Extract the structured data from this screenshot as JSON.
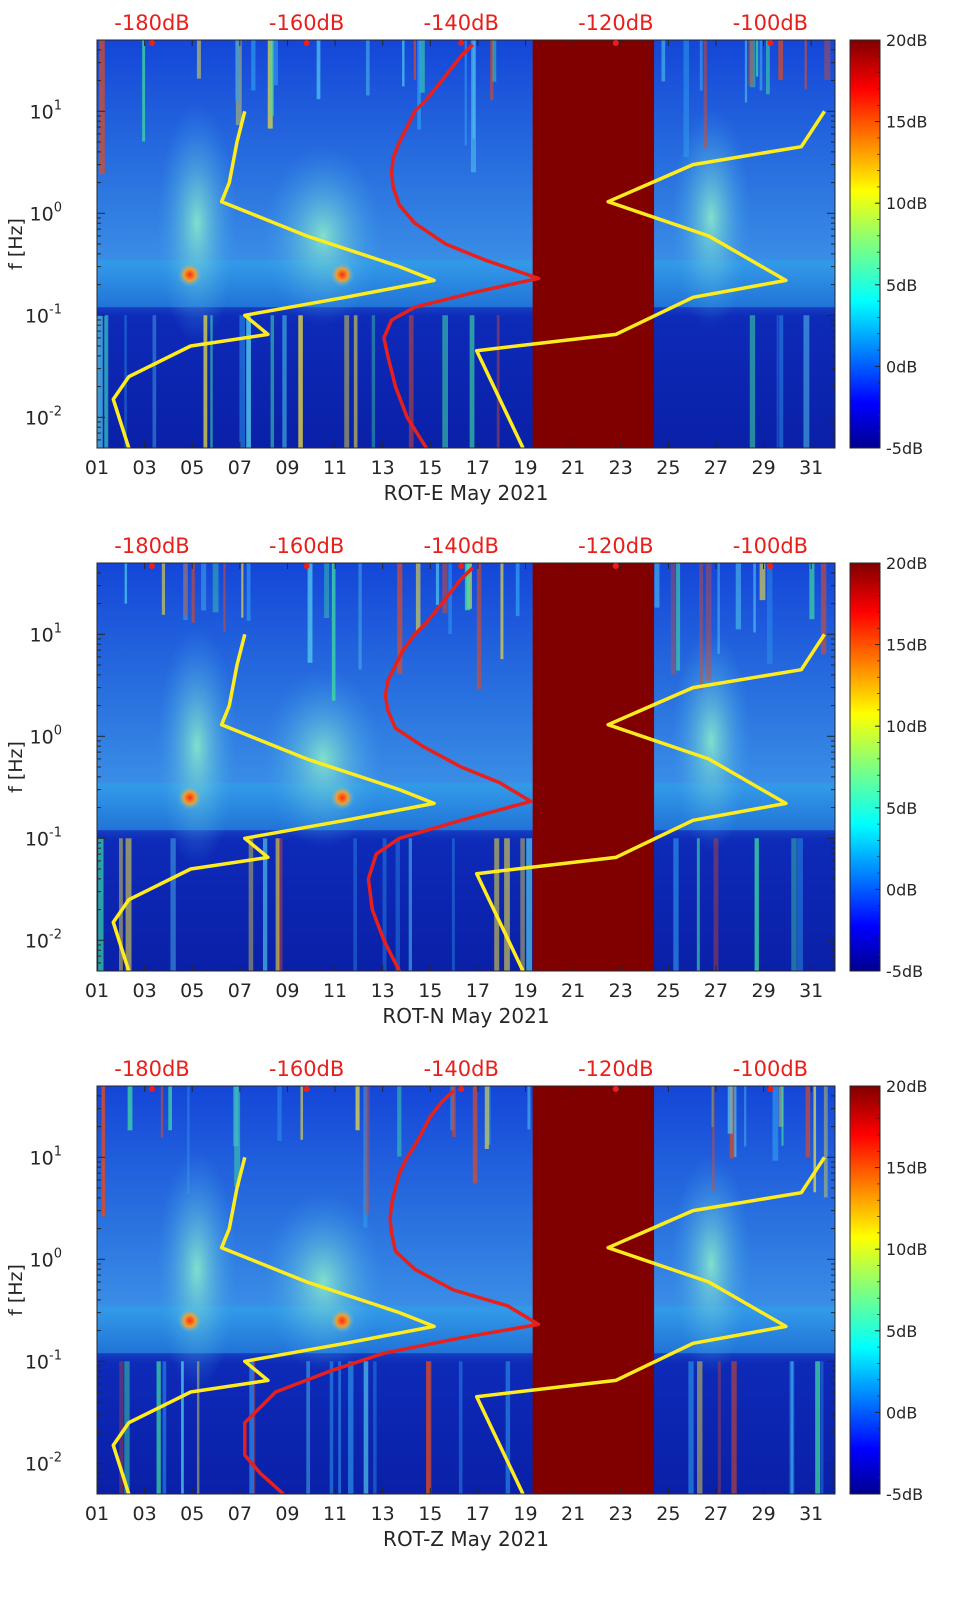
{
  "colors": {
    "gap_fill": "#800000",
    "psd_curve": "#e8201c",
    "nlnm_nhnm_curve": "#ffec1f",
    "top_scale_text": "#e8201c",
    "background_low": "#0a1fb0",
    "background_mid": "#2f7fe8"
  },
  "chart_data": [
    {
      "type": "heatmap",
      "xlabel": "ROT-E May 2021",
      "ylabel": "f [Hz]",
      "x_ticks": [
        "01",
        "03",
        "05",
        "07",
        "09",
        "11",
        "13",
        "15",
        "17",
        "19",
        "21",
        "23",
        "25",
        "27",
        "29",
        "31"
      ],
      "y_ticks": [
        "10^-2",
        "10^-1",
        "10^0",
        "10^1"
      ],
      "y_scale": "log",
      "ylim": [
        0.005,
        50
      ],
      "xlim": [
        1,
        32
      ],
      "top_scale_labels": [
        "-180dB",
        "-160dB",
        "-140dB",
        "-120dB",
        "-100dB"
      ],
      "colorbar": {
        "min": -5,
        "max": 20,
        "ticks": [
          "20dB",
          "15dB",
          "10dB",
          "5dB",
          "0dB",
          "-5dB"
        ]
      },
      "data_gap_days": [
        19.3,
        24.4
      ],
      "series": [
        {
          "color": "red",
          "points": [
            [
              -138.5,
              45
            ],
            [
              -140,
              35
            ],
            [
              -141.5,
              25
            ],
            [
              -143,
              18
            ],
            [
              -144.5,
              13
            ],
            [
              -146,
              10
            ],
            [
              -147,
              7
            ],
            [
              -148,
              5
            ],
            [
              -148.8,
              3.5
            ],
            [
              -149,
              2.5
            ],
            [
              -148.8,
              1.8
            ],
            [
              -148,
              1.2
            ],
            [
              -146,
              0.8
            ],
            [
              -142,
              0.5
            ],
            [
              -137,
              0.35
            ],
            [
              -130,
              0.23
            ],
            [
              -138,
              0.17
            ],
            [
              -146,
              0.12
            ],
            [
              -149,
              0.09
            ],
            [
              -150,
              0.06
            ],
            [
              -149.5,
              0.04
            ],
            [
              -148.5,
              0.02
            ],
            [
              -147,
              0.01
            ],
            [
              -144.5,
              0.005
            ]
          ]
        },
        {
          "color": "yellow",
          "points": [
            [
              -168,
              10
            ],
            [
              -169,
              5
            ],
            [
              -170,
              2
            ],
            [
              -171,
              1.3
            ],
            [
              -160,
              0.6
            ],
            [
              -148,
              0.3
            ],
            [
              -143.5,
              0.22
            ],
            [
              -155,
              0.15
            ],
            [
              -168,
              0.1
            ],
            [
              -165,
              0.065
            ],
            [
              -175,
              0.05
            ],
            [
              -183,
              0.025
            ],
            [
              -185,
              0.015
            ],
            [
              -183,
              0.005
            ]
          ]
        },
        {
          "color": "yellow",
          "points": [
            [
              -93,
              10
            ],
            [
              -96,
              4.5
            ],
            [
              -110,
              3
            ],
            [
              -121,
              1.3
            ],
            [
              -108,
              0.6
            ],
            [
              -98,
              0.22
            ],
            [
              -110,
              0.15
            ],
            [
              -120,
              0.065
            ],
            [
              -138,
              0.045
            ],
            [
              -132,
              0.005
            ]
          ]
        }
      ]
    },
    {
      "type": "heatmap",
      "xlabel": "ROT-N May 2021",
      "ylabel": "f [Hz]",
      "x_ticks": [
        "01",
        "03",
        "05",
        "07",
        "09",
        "11",
        "13",
        "15",
        "17",
        "19",
        "21",
        "23",
        "25",
        "27",
        "29",
        "31"
      ],
      "y_ticks": [
        "10^-2",
        "10^-1",
        "10^0",
        "10^1"
      ],
      "y_scale": "log",
      "ylim": [
        0.005,
        50
      ],
      "xlim": [
        1,
        32
      ],
      "top_scale_labels": [
        "-180dB",
        "-160dB",
        "-140dB",
        "-120dB",
        "-100dB"
      ],
      "colorbar": {
        "min": -5,
        "max": 20,
        "ticks": [
          "20dB",
          "15dB",
          "10dB",
          "5dB",
          "0dB",
          "-5dB"
        ]
      },
      "data_gap_days": [
        19.3,
        24.4
      ],
      "series": [
        {
          "color": "red",
          "points": [
            [
              -138.5,
              45
            ],
            [
              -140,
              35
            ],
            [
              -141.5,
              25
            ],
            [
              -143,
              18
            ],
            [
              -144.5,
              13
            ],
            [
              -146,
              10
            ],
            [
              -147.5,
              7
            ],
            [
              -148.5,
              5
            ],
            [
              -149.5,
              3.5
            ],
            [
              -149.8,
              2.5
            ],
            [
              -149.5,
              1.8
            ],
            [
              -148.5,
              1.2
            ],
            [
              -145,
              0.8
            ],
            [
              -140,
              0.5
            ],
            [
              -135,
              0.35
            ],
            [
              -131,
              0.23
            ],
            [
              -140,
              0.15
            ],
            [
              -148,
              0.1
            ],
            [
              -151,
              0.07
            ],
            [
              -152,
              0.04
            ],
            [
              -151.5,
              0.02
            ],
            [
              -150,
              0.01
            ],
            [
              -148,
              0.005
            ]
          ]
        },
        {
          "color": "yellow",
          "points": [
            [
              -168,
              10
            ],
            [
              -169,
              5
            ],
            [
              -170,
              2
            ],
            [
              -171,
              1.3
            ],
            [
              -160,
              0.6
            ],
            [
              -148,
              0.3
            ],
            [
              -143.5,
              0.22
            ],
            [
              -155,
              0.15
            ],
            [
              -168,
              0.1
            ],
            [
              -165,
              0.065
            ],
            [
              -175,
              0.05
            ],
            [
              -183,
              0.025
            ],
            [
              -185,
              0.015
            ],
            [
              -183,
              0.005
            ]
          ]
        },
        {
          "color": "yellow",
          "points": [
            [
              -93,
              10
            ],
            [
              -96,
              4.5
            ],
            [
              -110,
              3
            ],
            [
              -121,
              1.3
            ],
            [
              -108,
              0.6
            ],
            [
              -98,
              0.22
            ],
            [
              -110,
              0.15
            ],
            [
              -120,
              0.065
            ],
            [
              -138,
              0.045
            ],
            [
              -132,
              0.005
            ]
          ]
        }
      ]
    },
    {
      "type": "heatmap",
      "xlabel": "ROT-Z May 2021",
      "ylabel": "f [Hz]",
      "x_ticks": [
        "01",
        "03",
        "05",
        "07",
        "09",
        "11",
        "13",
        "15",
        "17",
        "19",
        "21",
        "23",
        "25",
        "27",
        "29",
        "31"
      ],
      "y_ticks": [
        "10^-2",
        "10^-1",
        "10^0",
        "10^1"
      ],
      "y_scale": "log",
      "ylim": [
        0.005,
        50
      ],
      "xlim": [
        1,
        32
      ],
      "top_scale_labels": [
        "-180dB",
        "-160dB",
        "-140dB",
        "-120dB",
        "-100dB"
      ],
      "colorbar": {
        "min": -5,
        "max": 20,
        "ticks": [
          "20dB",
          "15dB",
          "10dB",
          "5dB",
          "0dB",
          "-5dB"
        ]
      },
      "data_gap_days": [
        19.3,
        24.4
      ],
      "series": [
        {
          "color": "red",
          "points": [
            [
              -141,
              45
            ],
            [
              -142.5,
              35
            ],
            [
              -144,
              25
            ],
            [
              -145,
              18
            ],
            [
              -146,
              13
            ],
            [
              -147,
              10
            ],
            [
              -148,
              7
            ],
            [
              -148.5,
              5
            ],
            [
              -149,
              3.5
            ],
            [
              -149.2,
              2.5
            ],
            [
              -149,
              1.8
            ],
            [
              -148.5,
              1.2
            ],
            [
              -146,
              0.8
            ],
            [
              -141,
              0.5
            ],
            [
              -134,
              0.35
            ],
            [
              -130,
              0.23
            ],
            [
              -140,
              0.17
            ],
            [
              -150,
              0.12
            ],
            [
              -157,
              0.08
            ],
            [
              -164,
              0.05
            ],
            [
              -168,
              0.025
            ],
            [
              -168,
              0.012
            ],
            [
              -166,
              0.008
            ],
            [
              -163,
              0.005
            ]
          ]
        },
        {
          "color": "yellow",
          "points": [
            [
              -168,
              10
            ],
            [
              -169,
              5
            ],
            [
              -170,
              2
            ],
            [
              -171,
              1.3
            ],
            [
              -160,
              0.6
            ],
            [
              -148,
              0.3
            ],
            [
              -143.5,
              0.22
            ],
            [
              -155,
              0.15
            ],
            [
              -168,
              0.1
            ],
            [
              -165,
              0.065
            ],
            [
              -175,
              0.05
            ],
            [
              -183,
              0.025
            ],
            [
              -185,
              0.015
            ],
            [
              -183,
              0.005
            ]
          ]
        },
        {
          "color": "yellow",
          "points": [
            [
              -93,
              10
            ],
            [
              -96,
              4.5
            ],
            [
              -110,
              3
            ],
            [
              -121,
              1.3
            ],
            [
              -108,
              0.6
            ],
            [
              -98,
              0.22
            ],
            [
              -110,
              0.15
            ],
            [
              -120,
              0.065
            ],
            [
              -138,
              0.045
            ],
            [
              -132,
              0.005
            ]
          ]
        }
      ]
    }
  ]
}
